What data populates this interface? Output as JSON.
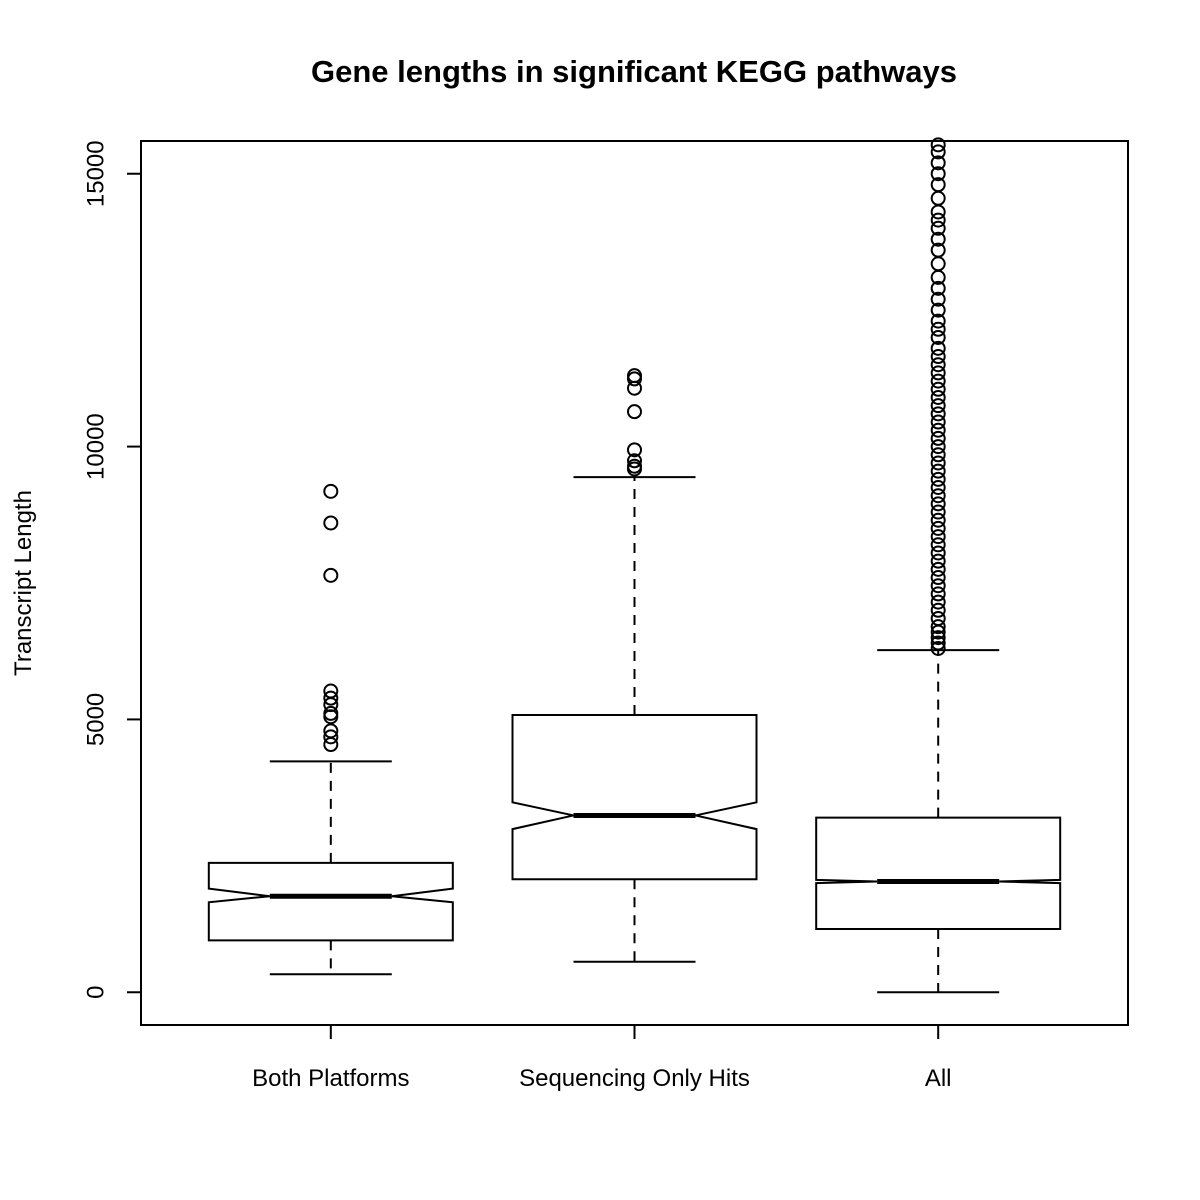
{
  "chart_data": {
    "type": "boxplot",
    "title": "Gene lengths in significant KEGG pathways",
    "xlabel": "",
    "ylabel": "Transcript Length",
    "ylim": [
      -600,
      15600
    ],
    "yticks": [
      0,
      5000,
      10000,
      15000
    ],
    "notched": true,
    "grid": false,
    "categories": [
      "Both Platforms",
      "Sequencing Only Hits",
      "All"
    ],
    "boxes": [
      {
        "name": "Both Platforms",
        "whisker_low": 330,
        "q1": 950,
        "median": 1760,
        "q3": 2370,
        "whisker_high": 4230,
        "notch_low": 1650,
        "notch_high": 1900,
        "outliers": [
          4540,
          4680,
          4790,
          5050,
          5110,
          5270,
          5390,
          5520,
          7640,
          8600,
          9180
        ]
      },
      {
        "name": "Sequencing Only Hits",
        "whisker_low": 560,
        "q1": 2070,
        "median": 3240,
        "q3": 5080,
        "whisker_high": 9440,
        "notch_low": 2990,
        "notch_high": 3480,
        "outliers": [
          9590,
          9640,
          9740,
          9940,
          10640,
          11070,
          11240,
          11300
        ]
      },
      {
        "name": "All",
        "whisker_low": 0,
        "q1": 1160,
        "median": 2030,
        "q3": 3200,
        "whisker_high": 6270,
        "notch_low": 2000,
        "notch_high": 2060,
        "outliers": [
          6300,
          6400,
          6500,
          6600,
          6700,
          6850,
          7000,
          7150,
          7300,
          7450,
          7600,
          7750,
          7900,
          8050,
          8200,
          8350,
          8500,
          8650,
          8800,
          8950,
          9100,
          9250,
          9400,
          9550,
          9700,
          9850,
          10000,
          10150,
          10300,
          10450,
          10600,
          10750,
          10900,
          11050,
          11200,
          11350,
          11500,
          11650,
          11800,
          12000,
          12150,
          12300,
          12500,
          12700,
          12900,
          13100,
          13350,
          13600,
          13800,
          14000,
          14150,
          14300,
          14550,
          14800,
          15000,
          15200,
          15400,
          15530
        ]
      }
    ]
  }
}
